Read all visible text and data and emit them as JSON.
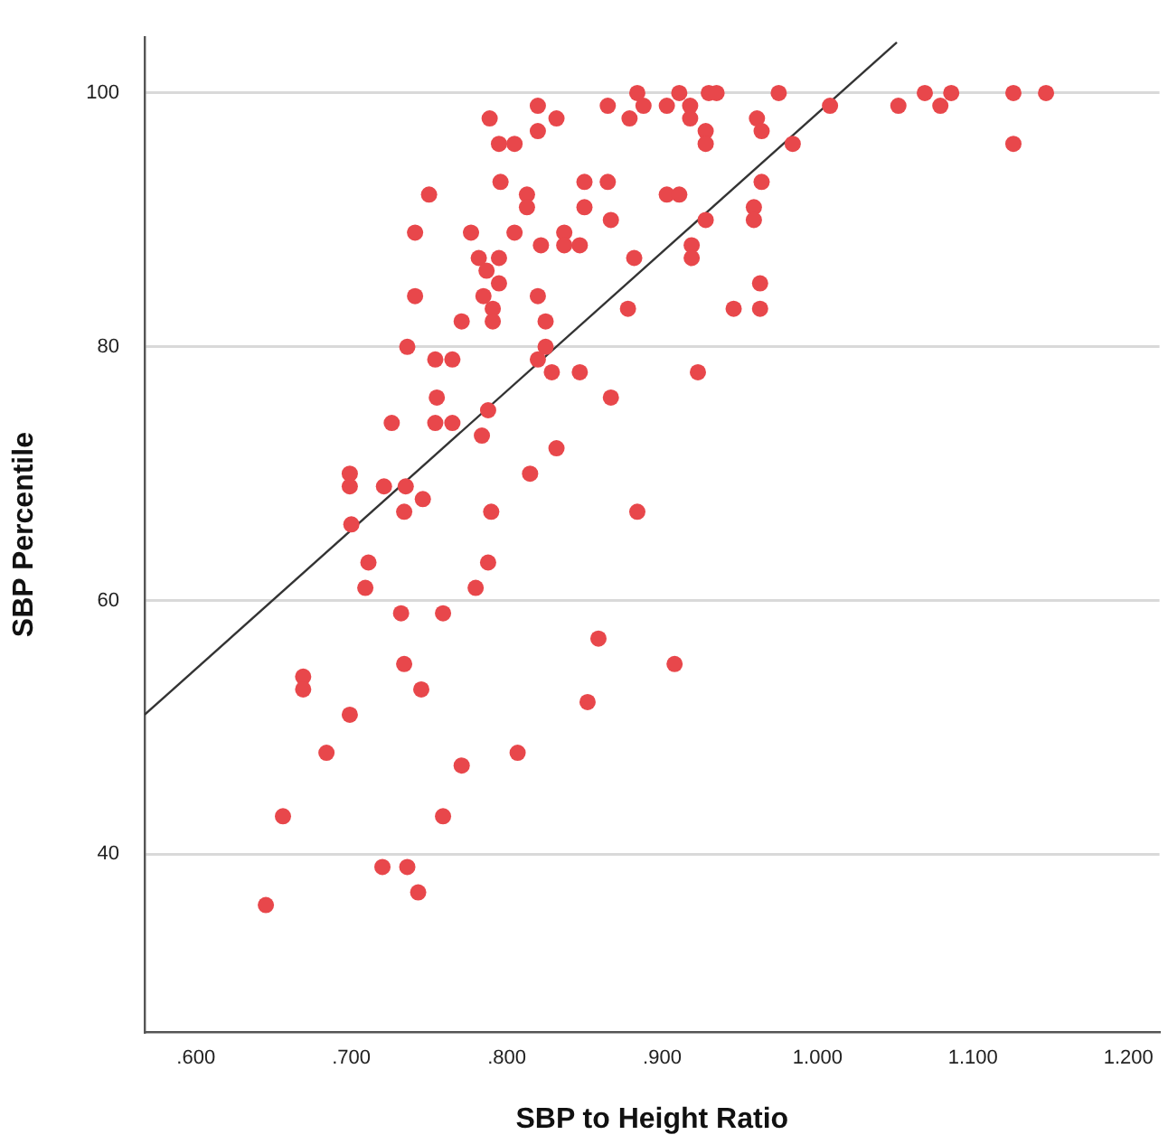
{
  "chart_data": {
    "type": "scatter",
    "xlabel": "SBP to Height Ratio",
    "ylabel": "SBP Percentile",
    "xlim": [
      0.567,
      1.22
    ],
    "xticks": [
      {
        "value": 0.6,
        "label": ".600"
      },
      {
        "value": 0.7,
        "label": ".700"
      },
      {
        "value": 0.8,
        "label": ".800"
      },
      {
        "value": 0.9,
        "label": ".900"
      },
      {
        "value": 1,
        "label": "1.000"
      },
      {
        "value": 1.1,
        "label": "1.100"
      },
      {
        "value": 1.2,
        "label": "1.200"
      }
    ],
    "ylim": [
      26,
      104.4
    ],
    "yticks": [
      40,
      60,
      80,
      100
    ],
    "grid": "y",
    "legend": false,
    "marker": "circle",
    "series": [
      {
        "type": "scatter",
        "color": "#e8474b",
        "x": [
          0.789,
          0.795,
          0.796,
          0.75,
          0.741,
          0.777,
          0.782,
          0.795,
          0.787,
          0.795,
          0.741,
          0.785,
          0.791,
          0.791,
          0.771,
          0.736,
          0.754,
          0.765,
          0.755,
          0.726,
          0.754,
          0.765,
          0.788,
          0.784,
          0.699,
          0.699,
          0.721,
          0.735,
          0.746,
          0.734,
          0.79,
          0.7,
          0.884,
          0.711,
          0.709,
          0.788,
          0.78,
          0.732,
          0.759,
          0.859,
          0.908,
          0.669,
          0.669,
          0.734,
          0.745,
          0.699,
          0.852,
          0.684,
          0.771,
          0.807,
          0.656,
          0.759,
          0.72,
          0.736,
          0.743,
          0.645,
          0.884,
          0.911,
          0.93,
          0.935,
          0.975,
          0.82,
          0.865,
          0.888,
          0.903,
          0.918,
          0.832,
          0.879,
          0.918,
          0.961,
          0.964,
          0.928,
          0.928,
          0.82,
          0.805,
          0.984,
          1.008,
          0.85,
          0.865,
          0.964,
          0.813,
          0.813,
          0.85,
          0.903,
          0.911,
          0.959,
          0.959,
          0.867,
          0.928,
          0.805,
          0.837,
          0.837,
          0.847,
          0.822,
          0.919,
          0.919,
          0.882,
          0.963,
          0.82,
          0.878,
          0.946,
          0.963,
          0.825,
          0.82,
          0.825,
          0.829,
          0.847,
          0.923,
          0.867,
          0.832,
          0.815,
          1.052,
          1.069,
          1.079,
          1.086,
          1.126,
          1.126,
          1.147
        ],
        "values": [
          98,
          96,
          93,
          92,
          89,
          89,
          87,
          87,
          86,
          85,
          84,
          84,
          83,
          82,
          82,
          80,
          79,
          79,
          76,
          74,
          74,
          74,
          75,
          73,
          70,
          69,
          69,
          69,
          68,
          67,
          67,
          66,
          67,
          63,
          61,
          63,
          61,
          59,
          59,
          57,
          55,
          54,
          53,
          55,
          53,
          51,
          52,
          48,
          47,
          48,
          43,
          43,
          39,
          39,
          37,
          36,
          100,
          100,
          100,
          100,
          100,
          99,
          99,
          99,
          99,
          99,
          98,
          98,
          98,
          98,
          97,
          97,
          96,
          97,
          96,
          96,
          99,
          93,
          93,
          93,
          92,
          91,
          91,
          92,
          92,
          91,
          90,
          90,
          90,
          89,
          89,
          88,
          88,
          88,
          88,
          87,
          87,
          85,
          84,
          83,
          83,
          83,
          82,
          79,
          80,
          78,
          78,
          78,
          76,
          72,
          70,
          99,
          100,
          99,
          100,
          100,
          96,
          100
        ]
      },
      {
        "type": "line",
        "color": "#333333",
        "marker": "none",
        "line_style": "solid",
        "x": [
          0.567,
          1.051
        ],
        "values": [
          51,
          104
        ]
      }
    ]
  }
}
